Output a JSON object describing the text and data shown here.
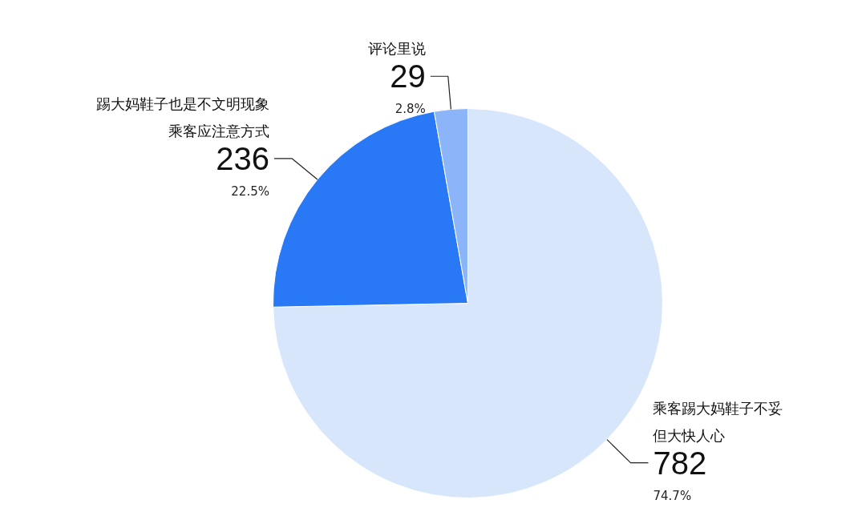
{
  "chart_data": {
    "type": "pie",
    "categories": [
      "乘客踢大妈鞋子不妥但大快人心",
      "踢大妈鞋子也是不文明现象乘客应注意方式",
      "评论里说"
    ],
    "values": [
      782,
      236,
      29
    ],
    "colors": [
      "#d8e6fc",
      "#2979f7",
      "#8cb5f9"
    ],
    "data_labels": true,
    "annotations": [
      "74.7%",
      "22.5%",
      "2.8%"
    ]
  }
}
